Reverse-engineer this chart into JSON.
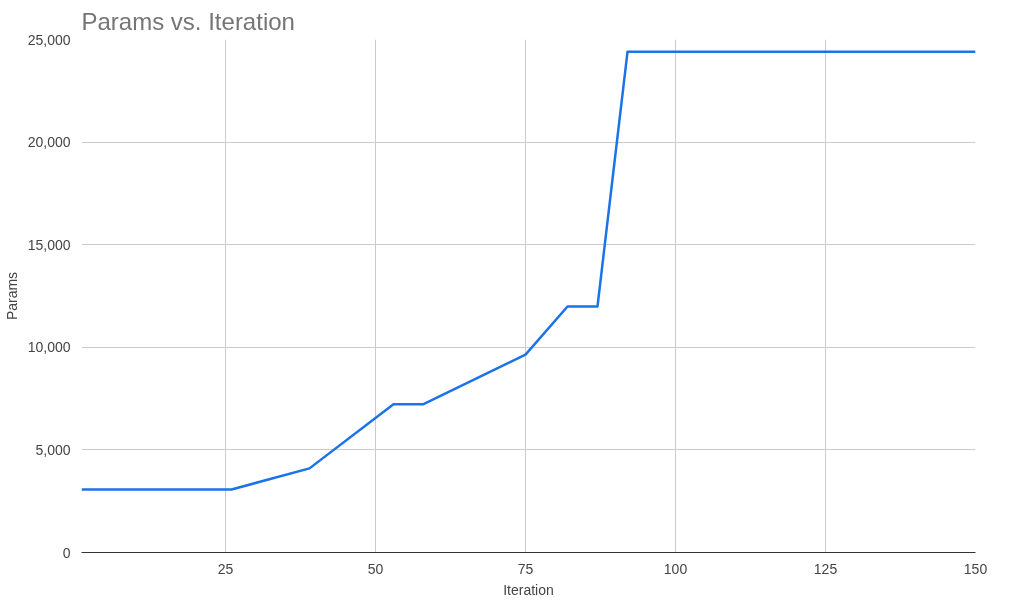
{
  "chart_data": {
    "type": "line",
    "title": "Params vs. Iteration",
    "xlabel": "Iteration",
    "ylabel": "Params",
    "x": [
      1,
      26,
      39,
      53,
      58,
      75,
      82,
      87,
      92,
      150
    ],
    "series": [
      {
        "color": "#1a73e8",
        "values": [
          3070,
          3070,
          4100,
          7230,
          7230,
          9640,
          11990,
          11990,
          24400,
          24400
        ]
      }
    ],
    "xlim": [
      1,
      150
    ],
    "xticks": [
      25,
      50,
      75,
      100,
      125,
      150
    ],
    "ylim": [
      0,
      25000
    ],
    "yticks": [
      {
        "value": 0,
        "label": "0"
      },
      {
        "value": 5000,
        "label": "5,000"
      },
      {
        "value": 10000,
        "label": "10,000"
      },
      {
        "value": 15000,
        "label": "15,000"
      },
      {
        "value": 20000,
        "label": "20,000"
      },
      {
        "value": 25000,
        "label": "25,000"
      }
    ],
    "grid": true,
    "marker": "none",
    "line_style": "solid"
  }
}
